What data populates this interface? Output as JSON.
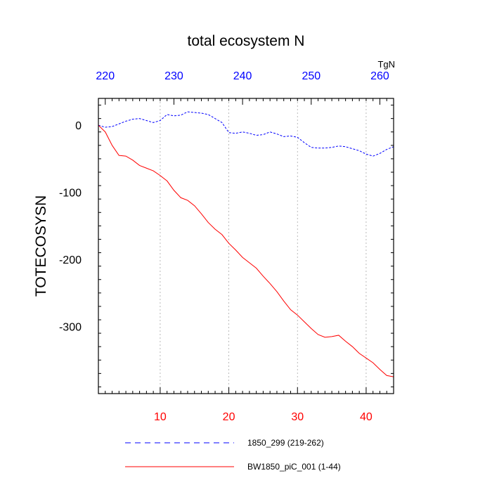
{
  "chart_data": {
    "type": "line",
    "title": "total ecosystem N",
    "ylabel": "TOTECOSYSN",
    "units_label": "TgN",
    "xlim": [
      1,
      44
    ],
    "top_xlim": [
      219,
      262
    ],
    "ylim": [
      -400,
      40
    ],
    "bottom_ticks": [
      10,
      20,
      30,
      40
    ],
    "top_ticks": [
      220,
      230,
      240,
      250,
      260
    ],
    "y_ticks": [
      0,
      -100,
      -200,
      -300
    ],
    "vertical_grid": [
      10,
      20,
      30,
      40
    ],
    "colors": {
      "bottom_axis": "#ff0000",
      "top_axis": "#0000ff",
      "axes": "#000000",
      "grid": "#aaaaaa"
    },
    "series": [
      {
        "name": "1850_299 (219-262)",
        "color": "#0000ff",
        "dash": "dashed",
        "axis": "top",
        "x": [
          219,
          220,
          221,
          222,
          223,
          224,
          225,
          226,
          227,
          228,
          229,
          230,
          231,
          232,
          233,
          234,
          235,
          236,
          237,
          238,
          239,
          240,
          241,
          242,
          243,
          244,
          245,
          246,
          247,
          248,
          249,
          250,
          251,
          252,
          253,
          254,
          255,
          256,
          257,
          258,
          259,
          260,
          261,
          262
        ],
        "values": [
          0,
          -3,
          -2,
          2,
          6,
          9,
          10,
          7,
          4,
          7,
          16,
          14,
          15,
          20,
          19,
          18,
          16,
          10,
          4,
          -11,
          -12,
          -10,
          -12,
          -15,
          -14,
          -10,
          -13,
          -17,
          -16,
          -18,
          -26,
          -33,
          -34,
          -34,
          -33,
          -31,
          -32,
          -35,
          -38,
          -43,
          -46,
          -42,
          -36,
          -32
        ]
      },
      {
        "name": "BW1850_piC_001 (1-44)",
        "color": "#ff0000",
        "dash": "solid",
        "axis": "bottom",
        "x": [
          1,
          2,
          3,
          4,
          5,
          6,
          7,
          8,
          9,
          10,
          11,
          12,
          13,
          14,
          15,
          16,
          17,
          18,
          19,
          20,
          21,
          22,
          23,
          24,
          25,
          26,
          27,
          28,
          29,
          30,
          31,
          32,
          33,
          34,
          35,
          36,
          37,
          38,
          39,
          40,
          41,
          42,
          43,
          44
        ],
        "values": [
          0,
          -10,
          -30,
          -45,
          -46,
          -52,
          -60,
          -64,
          -68,
          -75,
          -83,
          -97,
          -108,
          -112,
          -120,
          -132,
          -145,
          -155,
          -163,
          -176,
          -186,
          -197,
          -205,
          -213,
          -225,
          -236,
          -248,
          -262,
          -275,
          -283,
          -293,
          -303,
          -312,
          -316,
          -315,
          -313,
          -322,
          -330,
          -340,
          -347,
          -354,
          -364,
          -373,
          -375
        ]
      }
    ]
  }
}
